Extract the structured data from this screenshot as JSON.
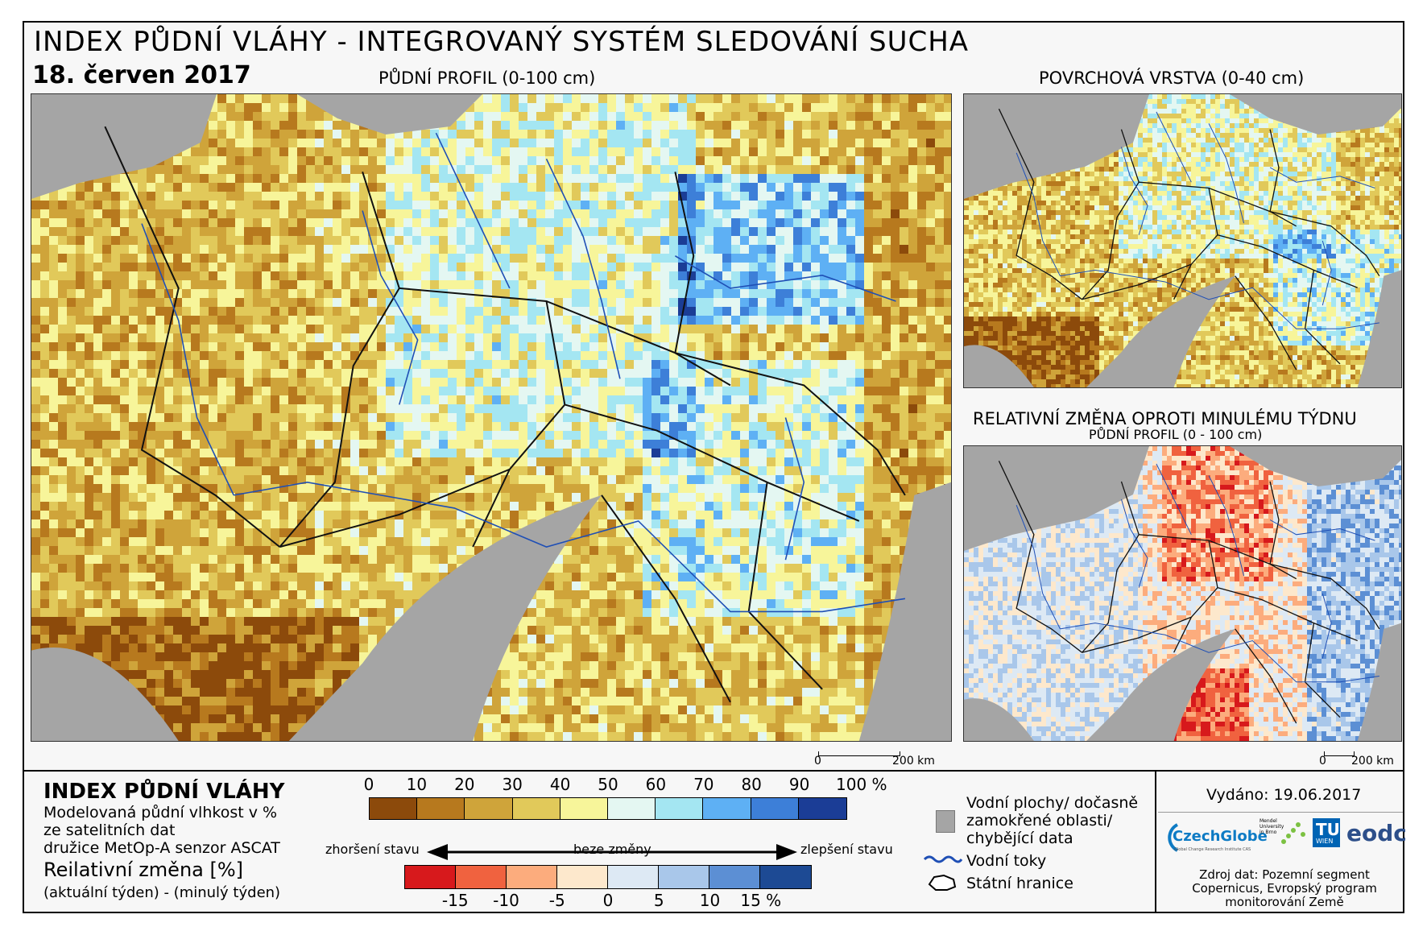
{
  "header": {
    "title": "INDEX PŮDNÍ VLÁHY - INTEGROVANÝ SYSTÉM SLEDOVÁNÍ SUCHA",
    "date": "18. červen 2017"
  },
  "panels": {
    "main_title": "PŮDNÍ PROFIL (0-100 cm)",
    "surface_title": "POVRCHOVÁ VRSTVA (0-40 cm)",
    "change_title": "RELATIVNÍ ZMĚNA OPROTI MINULÉMU TÝDNU",
    "change_subtitle": "PŮDNÍ PROFIL (0 - 100 cm)"
  },
  "scalebar": {
    "zero": "0",
    "main_end": "200 km",
    "small_end": "200 km"
  },
  "legend": {
    "title": "INDEX PŮDNÍ VLÁHY",
    "desc": [
      "Modelovaná půdní vlhkost v %",
      "ze satelitních dat",
      "družice MetOp-A senzor ASCAT"
    ],
    "rel_title": "Reilativní změna [%]",
    "rel_sub": "(aktuální týden) - (minulý týden)",
    "moisture_ticks": [
      "0",
      "10",
      "20",
      "30",
      "40",
      "50",
      "60",
      "70",
      "80",
      "90",
      "100 %"
    ],
    "moisture_colors": [
      "#8c4a0b",
      "#b7791e",
      "#cfa43a",
      "#e1c95a",
      "#f7f59a",
      "#e4f7f2",
      "#a4e6f2",
      "#5eb0f4",
      "#3d7fd8",
      "#1b3d96"
    ],
    "change_ticks": [
      "-15",
      "-10",
      "-5",
      "0",
      "5",
      "10",
      "15 %"
    ],
    "change_colors": [
      "#d7191c",
      "#f0623f",
      "#fcac7d",
      "#fde8cc",
      "#dde9f4",
      "#a9c7ea",
      "#5c8fd4",
      "#1d4a94"
    ],
    "worse": "zhoršení stavu",
    "same": "beze změny",
    "better": "zlepšení stavu",
    "items": {
      "water": "Vodní plochy/ dočasně zamokřené oblasti/ chybějící data",
      "rivers": "Vodní toky",
      "borders": "Státní hranice"
    }
  },
  "info": {
    "issued": "Vydáno: 19.06.2017",
    "source": "Zdroj dat: Pozemní segment Copernicus, Evropský program monitorování Země",
    "logo_czechglobe": "CzechGlobe",
    "logo_czechglobe_sub": "Global Change Research Institute CAS",
    "logo_mendel": "Mendel University in Brno",
    "logo_tu": "TU",
    "logo_tu_sub": "WIEN",
    "logo_eodc": "eodc"
  },
  "colors": {
    "sea": "#a5a5a5",
    "river": "#1f4fb5",
    "border": "#111111"
  }
}
